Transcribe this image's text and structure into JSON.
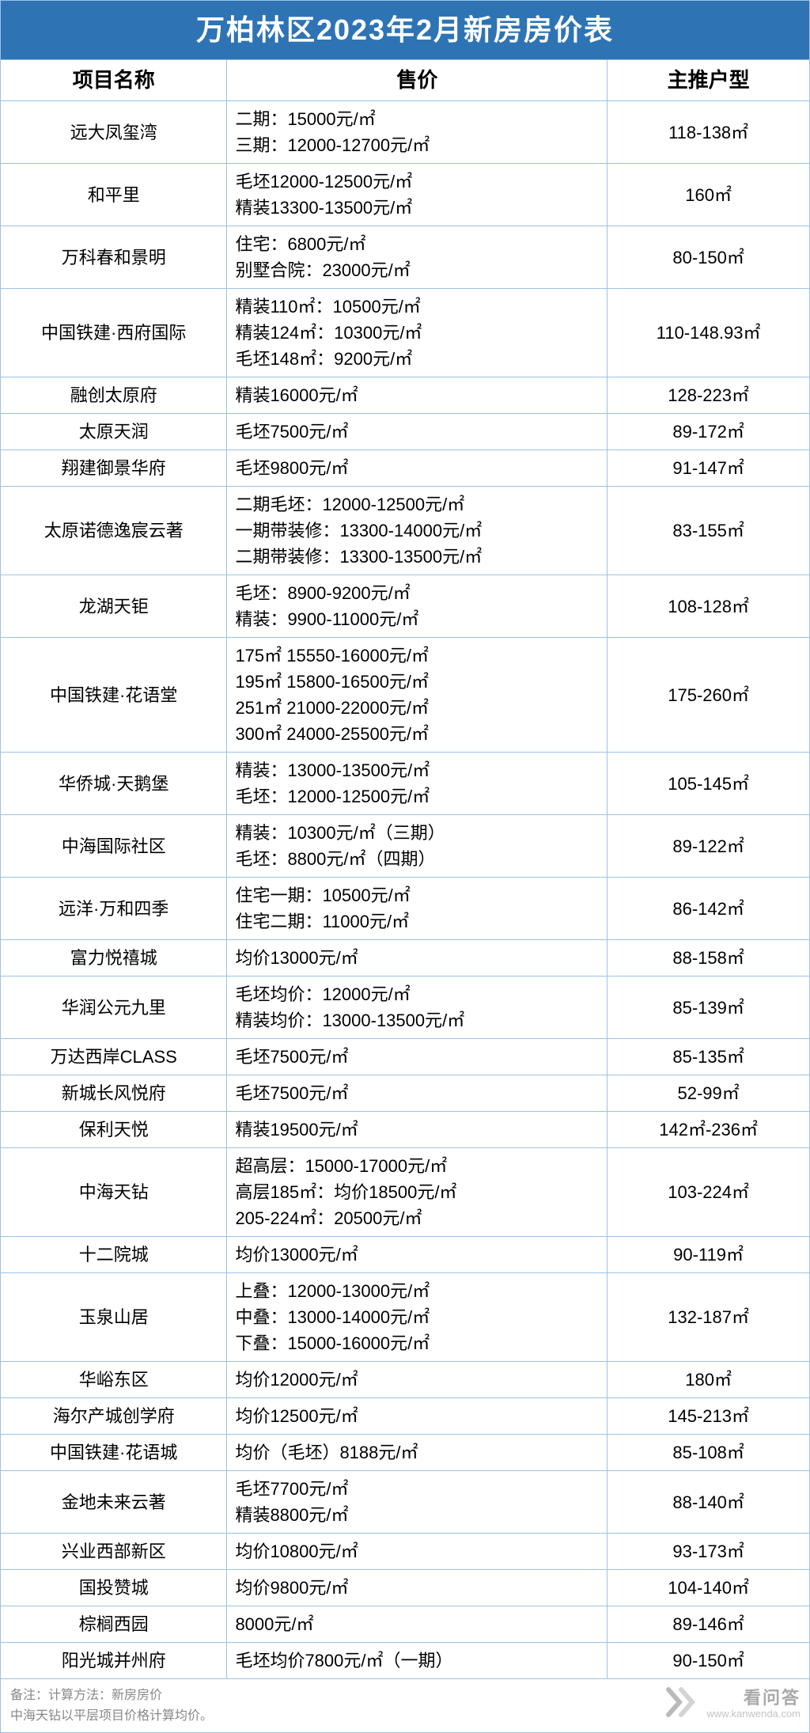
{
  "title": "万柏林区2023年2月新房房价表",
  "columns": [
    "项目名称",
    "售价",
    "主推户型"
  ],
  "styles": {
    "border_color": "#9cc2e5",
    "title_bg": "#2e74b5",
    "title_color": "#ffffff",
    "title_fontsize": 36,
    "header_fontsize": 26,
    "cell_fontsize": 22,
    "footer_color": "#888888",
    "footer_fontsize": 16,
    "col_widths_pct": [
      28,
      47,
      25
    ]
  },
  "rows": [
    {
      "name": "远大凤玺湾",
      "price": [
        "二期：15000元/㎡",
        "三期：12000-12700元/㎡"
      ],
      "type": "118-138㎡"
    },
    {
      "name": "和平里",
      "price": [
        "毛坯12000-12500元/㎡",
        "精装13300-13500元/㎡"
      ],
      "type": "160㎡"
    },
    {
      "name": "万科春和景明",
      "price": [
        "住宅：6800元/㎡",
        "别墅合院：23000元/㎡"
      ],
      "type": "80-150㎡"
    },
    {
      "name": "中国铁建·西府国际",
      "price": [
        "精装110㎡：10500元/㎡",
        "精装124㎡：10300元/㎡",
        "毛坯148㎡：9200元/㎡"
      ],
      "type": "110-148.93㎡"
    },
    {
      "name": "融创太原府",
      "price": [
        "精装16000元/㎡"
      ],
      "type": "128-223㎡"
    },
    {
      "name": "太原天润",
      "price": [
        "毛坯7500元/㎡"
      ],
      "type": "89-172㎡"
    },
    {
      "name": "翔建御景华府",
      "price": [
        "毛坯9800元/㎡"
      ],
      "type": "91-147㎡"
    },
    {
      "name": "太原诺德逸宸云著",
      "price": [
        "二期毛坯：12000-12500元/㎡",
        "一期带装修：13300-14000元/㎡",
        "二期带装修：13300-13500元/㎡"
      ],
      "type": "83-155㎡"
    },
    {
      "name": "龙湖天钜",
      "price": [
        "毛坯：8900-9200元/㎡",
        "精装：9900-11000元/㎡"
      ],
      "type": "108-128㎡"
    },
    {
      "name": "中国铁建·花语堂",
      "price": [
        "175㎡ 15550-16000元/㎡",
        "195㎡ 15800-16500元/㎡",
        "251㎡  21000-22000元/㎡",
        "300㎡ 24000-25500元/㎡"
      ],
      "type": "175-260㎡"
    },
    {
      "name": "华侨城·天鹅堡",
      "price": [
        "精装：13000-13500元/㎡",
        "毛坯：12000-12500元/㎡"
      ],
      "type": "105-145㎡"
    },
    {
      "name": "中海国际社区",
      "price": [
        "精装：10300元/㎡（三期）",
        "毛坯：8800元/㎡（四期）"
      ],
      "type": "89-122㎡"
    },
    {
      "name": "远洋·万和四季",
      "price": [
        "住宅一期：10500元/㎡",
        "住宅二期：11000元/㎡"
      ],
      "type": "86-142㎡"
    },
    {
      "name": "富力悦禧城",
      "price": [
        "均价13000元/㎡"
      ],
      "type": "88-158㎡"
    },
    {
      "name": "华润公元九里",
      "price": [
        "毛坯均价：12000元/㎡",
        "精装均价：13000-13500元/㎡"
      ],
      "type": "85-139㎡"
    },
    {
      "name": "万达西岸CLASS",
      "price": [
        "毛坯7500元/㎡"
      ],
      "type": "85-135㎡"
    },
    {
      "name": "新城长风悦府",
      "price": [
        "毛坯7500元/㎡"
      ],
      "type": "52-99㎡"
    },
    {
      "name": "保利天悦",
      "price": [
        "精装19500元/㎡"
      ],
      "type": "142㎡-236㎡"
    },
    {
      "name": "中海天钻",
      "price": [
        "超高层：15000-17000元/㎡",
        "高层185㎡：均价18500元/㎡",
        "205-224㎡：20500元/㎡"
      ],
      "type": "103-224㎡"
    },
    {
      "name": "十二院城",
      "price": [
        "均价13000元/㎡"
      ],
      "type": "90-119㎡"
    },
    {
      "name": "玉泉山居",
      "price": [
        "上叠：12000-13000元/㎡",
        "中叠：13000-14000元/㎡",
        "下叠：15000-16000元/㎡"
      ],
      "type": "132-187㎡"
    },
    {
      "name": "华峪东区",
      "price": [
        "均价12000元/㎡"
      ],
      "type": "180㎡"
    },
    {
      "name": "海尔产城创学府",
      "price": [
        "均价12500元/㎡"
      ],
      "type": "145-213㎡"
    },
    {
      "name": "中国铁建·花语城",
      "price": [
        "均价（毛坯）8188元/㎡"
      ],
      "type": "85-108㎡"
    },
    {
      "name": "金地未来云著",
      "price": [
        "毛坯7700元/㎡",
        "精装8800元/㎡"
      ],
      "type": "88-140㎡"
    },
    {
      "name": "兴业西部新区",
      "price": [
        "均价10800元/㎡"
      ],
      "type": "93-173㎡"
    },
    {
      "name": "国投赞城",
      "price": [
        "均价9800元/㎡"
      ],
      "type": "104-140㎡"
    },
    {
      "name": "棕榈西园",
      "price": [
        "8000元/㎡"
      ],
      "type": "89-146㎡"
    },
    {
      "name": "阳光城并州府",
      "price": [
        "毛坯均价7800元/㎡（一期）"
      ],
      "type": "90-150㎡"
    }
  ],
  "footer": [
    "备注：计算方法：新房房价",
    "中海天钻以平层项目价格计算均价。"
  ],
  "watermark": {
    "brand": "看问答",
    "url": "www.kanwenda.com"
  }
}
